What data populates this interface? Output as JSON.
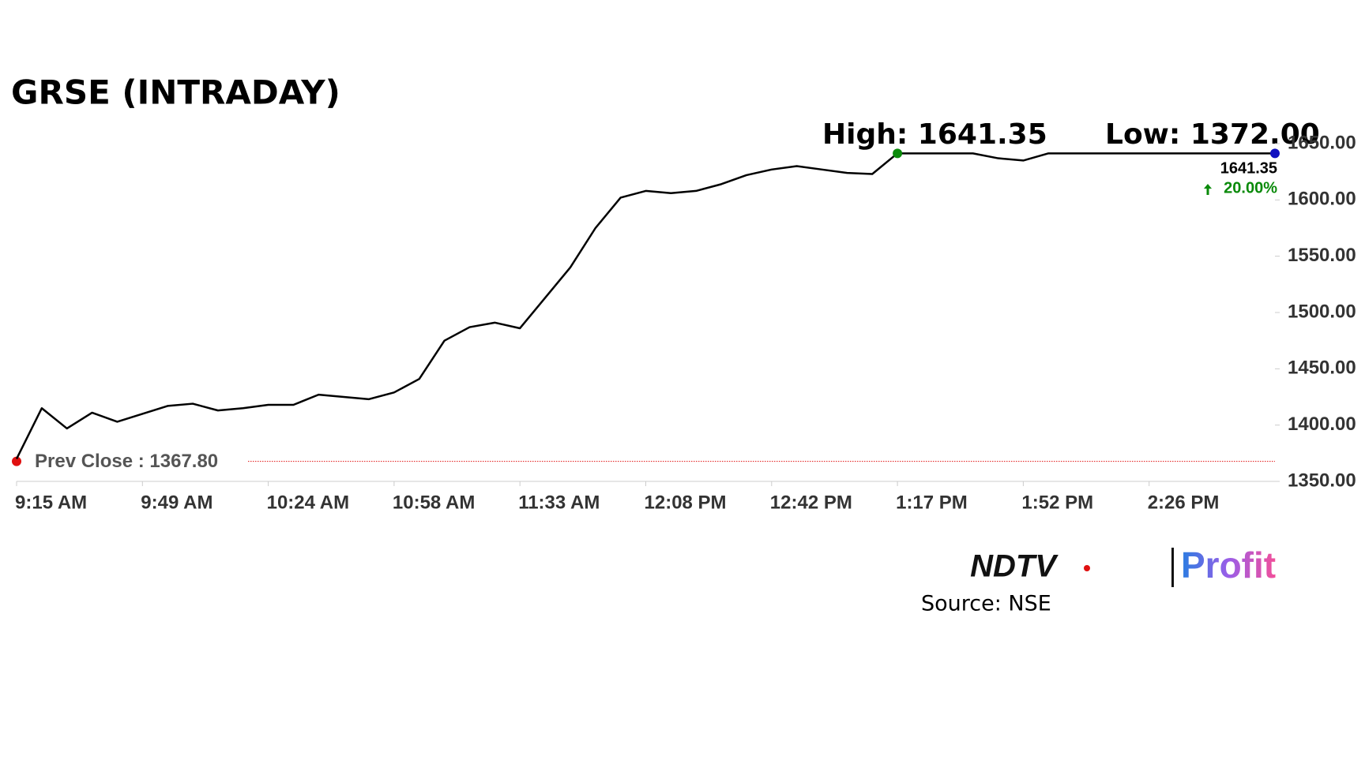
{
  "chart_data": {
    "type": "line",
    "title": "GRSE (INTRADAY)",
    "categories": [
      "9:15 AM",
      null,
      null,
      null,
      null,
      "9:49 AM",
      null,
      null,
      null,
      null,
      "10:24 AM",
      null,
      null,
      null,
      null,
      "10:58 AM",
      null,
      null,
      null,
      null,
      "11:33 AM",
      null,
      null,
      null,
      null,
      "12:08 PM",
      null,
      null,
      null,
      null,
      "12:42 PM",
      null,
      null,
      null,
      null,
      "1:17 PM",
      null,
      null,
      null,
      null,
      "1:52 PM",
      null,
      null,
      null,
      null,
      "2:26 PM",
      null,
      null,
      null,
      null,
      null
    ],
    "series": [
      {
        "color": "#000000",
        "values": [
          1370,
          1415,
          1397,
          1411,
          1403,
          1410,
          1417,
          1419,
          1413,
          1415,
          1418,
          1418,
          1427,
          1425,
          1423,
          1429,
          1441,
          1475,
          1487,
          1491,
          1486,
          1513,
          1540,
          1575,
          1602,
          1608,
          1606,
          1608,
          1614,
          1622,
          1627,
          1630,
          1627,
          1624,
          1623,
          1641.35,
          1641.35,
          1641.35,
          1641.35,
          1637,
          1635,
          1641.35,
          1641.35,
          1641.35,
          1641.35,
          1641.35,
          1641.35,
          1641.35,
          1641.35,
          1641.35,
          1641.35
        ]
      }
    ],
    "ylim": [
      1350,
      1650
    ],
    "yticks": [
      {
        "value": 1350,
        "label": "1350.00"
      },
      {
        "value": 1400,
        "label": "1400.00"
      },
      {
        "value": 1450,
        "label": "1450.00"
      },
      {
        "value": 1500,
        "label": "1500.00"
      },
      {
        "value": 1550,
        "label": "1550.00"
      },
      {
        "value": 1600,
        "label": "1600.00"
      },
      {
        "value": 1650,
        "label": "1650.00"
      }
    ],
    "high": {
      "value": 1641.35,
      "label": "High: 1641.35",
      "color": "#0a8a0a"
    },
    "low": {
      "value": 1372,
      "label": "Low: 1372.00"
    },
    "prev_close": {
      "value": 1367.8,
      "label": "Prev Close : 1367.80",
      "color": "#e01010"
    },
    "last_value": 1641.35,
    "last_color": "#1010c0",
    "change": {
      "value": 20,
      "label": "20.00%",
      "color": "#0a8a0a"
    },
    "logo": {
      "left": "NDTV",
      "right": "Profit"
    },
    "source": "Source: NSE"
  }
}
